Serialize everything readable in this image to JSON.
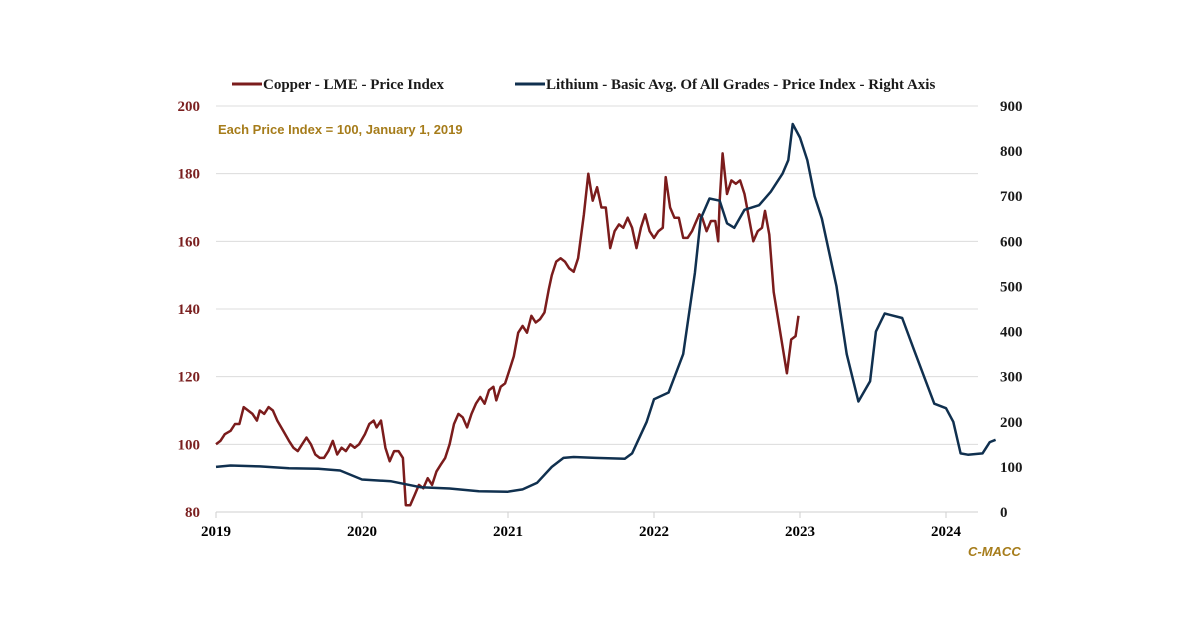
{
  "chart_data": {
    "type": "line",
    "title": "",
    "annotation": "Each Price Index = 100, January 1, 2019",
    "source": "C-MACC",
    "xlabel": "",
    "ylabel_left": "",
    "ylabel_right": "",
    "x_ticks": [
      "2019",
      "2020",
      "2021",
      "2022",
      "2023",
      "2024"
    ],
    "x_range": [
      2019,
      2024.27
    ],
    "y_left_range": [
      80,
      200
    ],
    "y_left_ticks": [
      80,
      100,
      120,
      140,
      160,
      180,
      200
    ],
    "y_right_range": [
      0,
      900
    ],
    "y_right_ticks": [
      0,
      100,
      200,
      300,
      400,
      500,
      600,
      700,
      800,
      900
    ],
    "grid": true,
    "legend_position": "top",
    "series": [
      {
        "name": "Copper - LME - Price Index",
        "axis": "left",
        "color": "#7b1c1c",
        "points": [
          [
            2019.0,
            100
          ],
          [
            2019.03,
            101
          ],
          [
            2019.06,
            103
          ],
          [
            2019.1,
            104
          ],
          [
            2019.13,
            106
          ],
          [
            2019.16,
            106
          ],
          [
            2019.19,
            111
          ],
          [
            2019.22,
            110
          ],
          [
            2019.25,
            109
          ],
          [
            2019.28,
            107
          ],
          [
            2019.3,
            110
          ],
          [
            2019.33,
            109
          ],
          [
            2019.36,
            111
          ],
          [
            2019.39,
            110
          ],
          [
            2019.42,
            107
          ],
          [
            2019.46,
            104
          ],
          [
            2019.5,
            101
          ],
          [
            2019.53,
            99
          ],
          [
            2019.56,
            98
          ],
          [
            2019.59,
            100
          ],
          [
            2019.62,
            102
          ],
          [
            2019.65,
            100
          ],
          [
            2019.68,
            97
          ],
          [
            2019.71,
            96
          ],
          [
            2019.74,
            96
          ],
          [
            2019.77,
            98
          ],
          [
            2019.8,
            101
          ],
          [
            2019.83,
            97
          ],
          [
            2019.86,
            99
          ],
          [
            2019.89,
            98
          ],
          [
            2019.92,
            100
          ],
          [
            2019.95,
            99
          ],
          [
            2019.98,
            100
          ],
          [
            2020.02,
            103
          ],
          [
            2020.05,
            106
          ],
          [
            2020.08,
            107
          ],
          [
            2020.1,
            105
          ],
          [
            2020.13,
            107
          ],
          [
            2020.16,
            99
          ],
          [
            2020.19,
            95
          ],
          [
            2020.22,
            98
          ],
          [
            2020.25,
            98
          ],
          [
            2020.28,
            96
          ],
          [
            2020.3,
            82
          ],
          [
            2020.33,
            82
          ],
          [
            2020.36,
            85
          ],
          [
            2020.39,
            88
          ],
          [
            2020.42,
            87
          ],
          [
            2020.45,
            90
          ],
          [
            2020.48,
            88
          ],
          [
            2020.51,
            92
          ],
          [
            2020.54,
            94
          ],
          [
            2020.57,
            96
          ],
          [
            2020.6,
            100
          ],
          [
            2020.63,
            106
          ],
          [
            2020.66,
            109
          ],
          [
            2020.69,
            108
          ],
          [
            2020.72,
            105
          ],
          [
            2020.75,
            109
          ],
          [
            2020.78,
            112
          ],
          [
            2020.81,
            114
          ],
          [
            2020.84,
            112
          ],
          [
            2020.87,
            116
          ],
          [
            2020.9,
            117
          ],
          [
            2020.92,
            113
          ],
          [
            2020.95,
            117
          ],
          [
            2020.98,
            118
          ],
          [
            2021.01,
            122
          ],
          [
            2021.04,
            126
          ],
          [
            2021.07,
            133
          ],
          [
            2021.1,
            135
          ],
          [
            2021.13,
            133
          ],
          [
            2021.16,
            138
          ],
          [
            2021.19,
            136
          ],
          [
            2021.22,
            137
          ],
          [
            2021.25,
            139
          ],
          [
            2021.28,
            146
          ],
          [
            2021.3,
            150
          ],
          [
            2021.33,
            154
          ],
          [
            2021.36,
            155
          ],
          [
            2021.39,
            154
          ],
          [
            2021.42,
            152
          ],
          [
            2021.45,
            151
          ],
          [
            2021.48,
            155
          ],
          [
            2021.52,
            168
          ],
          [
            2021.55,
            180
          ],
          [
            2021.58,
            172
          ],
          [
            2021.61,
            176
          ],
          [
            2021.64,
            170
          ],
          [
            2021.67,
            170
          ],
          [
            2021.7,
            158
          ],
          [
            2021.73,
            163
          ],
          [
            2021.76,
            165
          ],
          [
            2021.79,
            164
          ],
          [
            2021.82,
            167
          ],
          [
            2021.85,
            164
          ],
          [
            2021.88,
            158
          ],
          [
            2021.91,
            164
          ],
          [
            2021.94,
            168
          ],
          [
            2021.97,
            163
          ],
          [
            2022.0,
            161
          ],
          [
            2022.03,
            163
          ],
          [
            2022.06,
            164
          ],
          [
            2022.08,
            179
          ],
          [
            2022.11,
            170
          ],
          [
            2022.14,
            167
          ],
          [
            2022.17,
            167
          ],
          [
            2022.2,
            161
          ],
          [
            2022.23,
            161
          ],
          [
            2022.26,
            163
          ],
          [
            2022.28,
            165
          ],
          [
            2022.31,
            168
          ],
          [
            2022.33,
            167
          ],
          [
            2022.36,
            163
          ],
          [
            2022.39,
            166
          ],
          [
            2022.42,
            166
          ],
          [
            2022.45,
            172
          ],
          [
            2022.47,
            186
          ],
          [
            2022.5,
            174
          ],
          [
            2022.53,
            178
          ],
          [
            2022.56,
            177
          ],
          [
            2022.59,
            178
          ],
          [
            2022.62,
            174
          ],
          [
            2022.65,
            167
          ],
          [
            2022.68,
            160
          ],
          [
            2022.71,
            163
          ],
          [
            2022.74,
            164
          ],
          [
            2022.76,
            169
          ],
          [
            2022.79,
            162
          ],
          [
            2022.82,
            145
          ],
          [
            2022.85,
            137
          ],
          [
            2022.88,
            129
          ],
          [
            2022.91,
            121
          ],
          [
            2022.94,
            131
          ],
          [
            2022.97,
            132
          ],
          [
            2022.99,
            138
          ],
          [
            2022.44,
            160
          ]
        ]
      },
      {
        "name": "Lithium - Basic Avg. Of All Grades - Price Index - Right Axis",
        "axis": "right",
        "color": "#10304f",
        "points": [
          [
            2019.0,
            100
          ],
          [
            2019.1,
            103
          ],
          [
            2019.3,
            101
          ],
          [
            2019.5,
            97
          ],
          [
            2019.7,
            96
          ],
          [
            2019.85,
            92
          ],
          [
            2020.0,
            72
          ],
          [
            2020.2,
            68
          ],
          [
            2020.4,
            55
          ],
          [
            2020.6,
            52
          ],
          [
            2020.8,
            46
          ],
          [
            2021.0,
            45
          ],
          [
            2021.1,
            50
          ],
          [
            2021.2,
            65
          ],
          [
            2021.3,
            100
          ],
          [
            2021.38,
            120
          ],
          [
            2021.45,
            122
          ],
          [
            2021.6,
            120
          ],
          [
            2021.8,
            118
          ],
          [
            2021.85,
            130
          ],
          [
            2021.95,
            200
          ],
          [
            2022.0,
            250
          ],
          [
            2022.1,
            265
          ],
          [
            2022.2,
            350
          ],
          [
            2022.28,
            530
          ],
          [
            2022.32,
            650
          ],
          [
            2022.38,
            695
          ],
          [
            2022.45,
            690
          ],
          [
            2022.5,
            640
          ],
          [
            2022.55,
            630
          ],
          [
            2022.62,
            670
          ],
          [
            2022.72,
            680
          ],
          [
            2022.8,
            710
          ],
          [
            2022.88,
            750
          ],
          [
            2022.92,
            780
          ],
          [
            2022.95,
            860
          ],
          [
            2023.0,
            830
          ],
          [
            2023.05,
            780
          ],
          [
            2023.1,
            700
          ],
          [
            2023.15,
            650
          ],
          [
            2023.25,
            500
          ],
          [
            2023.32,
            350
          ],
          [
            2023.4,
            245
          ],
          [
            2023.48,
            290
          ],
          [
            2023.52,
            400
          ],
          [
            2023.58,
            440
          ],
          [
            2023.7,
            430
          ],
          [
            2023.78,
            360
          ],
          [
            2023.85,
            300
          ],
          [
            2023.92,
            240
          ],
          [
            2024.0,
            230
          ],
          [
            2024.05,
            200
          ],
          [
            2024.1,
            130
          ],
          [
            2024.15,
            127
          ],
          [
            2024.25,
            130
          ],
          [
            2024.3,
            155
          ],
          [
            2024.34,
            160
          ]
        ]
      }
    ]
  }
}
